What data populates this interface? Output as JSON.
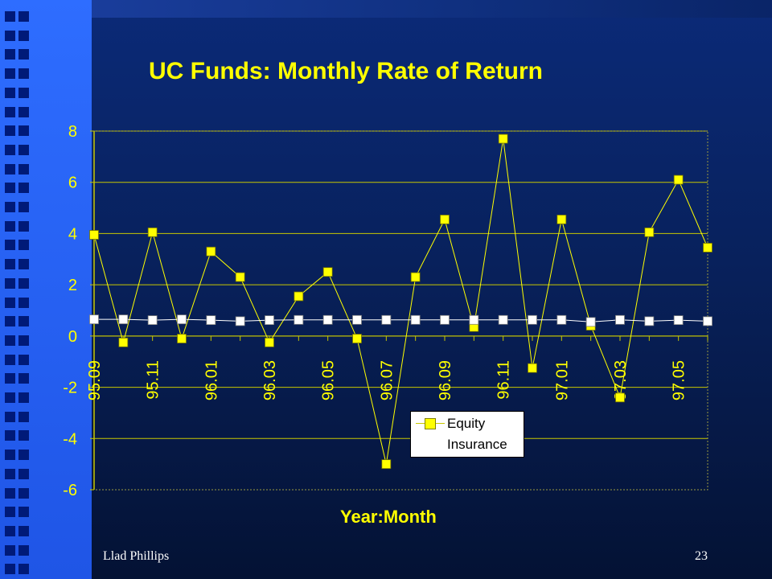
{
  "slide": {
    "footer_author": "Llad Phillips",
    "page_number": "23",
    "colors": {
      "background": "#0b2a78",
      "band": "#2e6dff",
      "accent": "#ffff00"
    }
  },
  "chart_data": {
    "type": "line",
    "title": "UC Funds: Monthly Rate of Return",
    "xlabel": "Year:Month",
    "ylabel": "",
    "ylim": [
      -6,
      8
    ],
    "yticks": [
      8,
      6,
      4,
      2,
      0,
      -2,
      -4,
      -6
    ],
    "x": [
      "95.09",
      "95.10",
      "95.11",
      "95.12",
      "96.01",
      "96.02",
      "96.03",
      "96.04",
      "96.05",
      "96.06",
      "96.07",
      "96.08",
      "96.09",
      "96.10",
      "96.11",
      "96.12",
      "97.01",
      "97.02",
      "97.03",
      "97.04",
      "97.05",
      "97.06"
    ],
    "xtick_labels": [
      "95.09",
      "95.11",
      "96.01",
      "96.03",
      "96.05",
      "96.07",
      "96.09",
      "96.11",
      "97.01",
      "97.03",
      "97.05"
    ],
    "grid": true,
    "legend_position": "lower-right",
    "series": [
      {
        "name": "Equity",
        "color": "#ffff00",
        "marker": "square",
        "values": [
          3.95,
          -0.25,
          4.05,
          -0.1,
          3.3,
          2.3,
          -0.25,
          1.55,
          2.5,
          -0.1,
          -5.0,
          2.3,
          4.55,
          0.35,
          7.7,
          -1.25,
          4.55,
          0.4,
          -2.4,
          4.05,
          6.1,
          3.45
        ]
      },
      {
        "name": "Insurance",
        "color": "#ffffff",
        "marker": "square",
        "values": [
          0.65,
          0.65,
          0.62,
          0.65,
          0.62,
          0.58,
          0.62,
          0.63,
          0.63,
          0.63,
          0.63,
          0.63,
          0.63,
          0.63,
          0.63,
          0.63,
          0.63,
          0.55,
          0.63,
          0.58,
          0.62,
          0.58
        ]
      }
    ]
  }
}
